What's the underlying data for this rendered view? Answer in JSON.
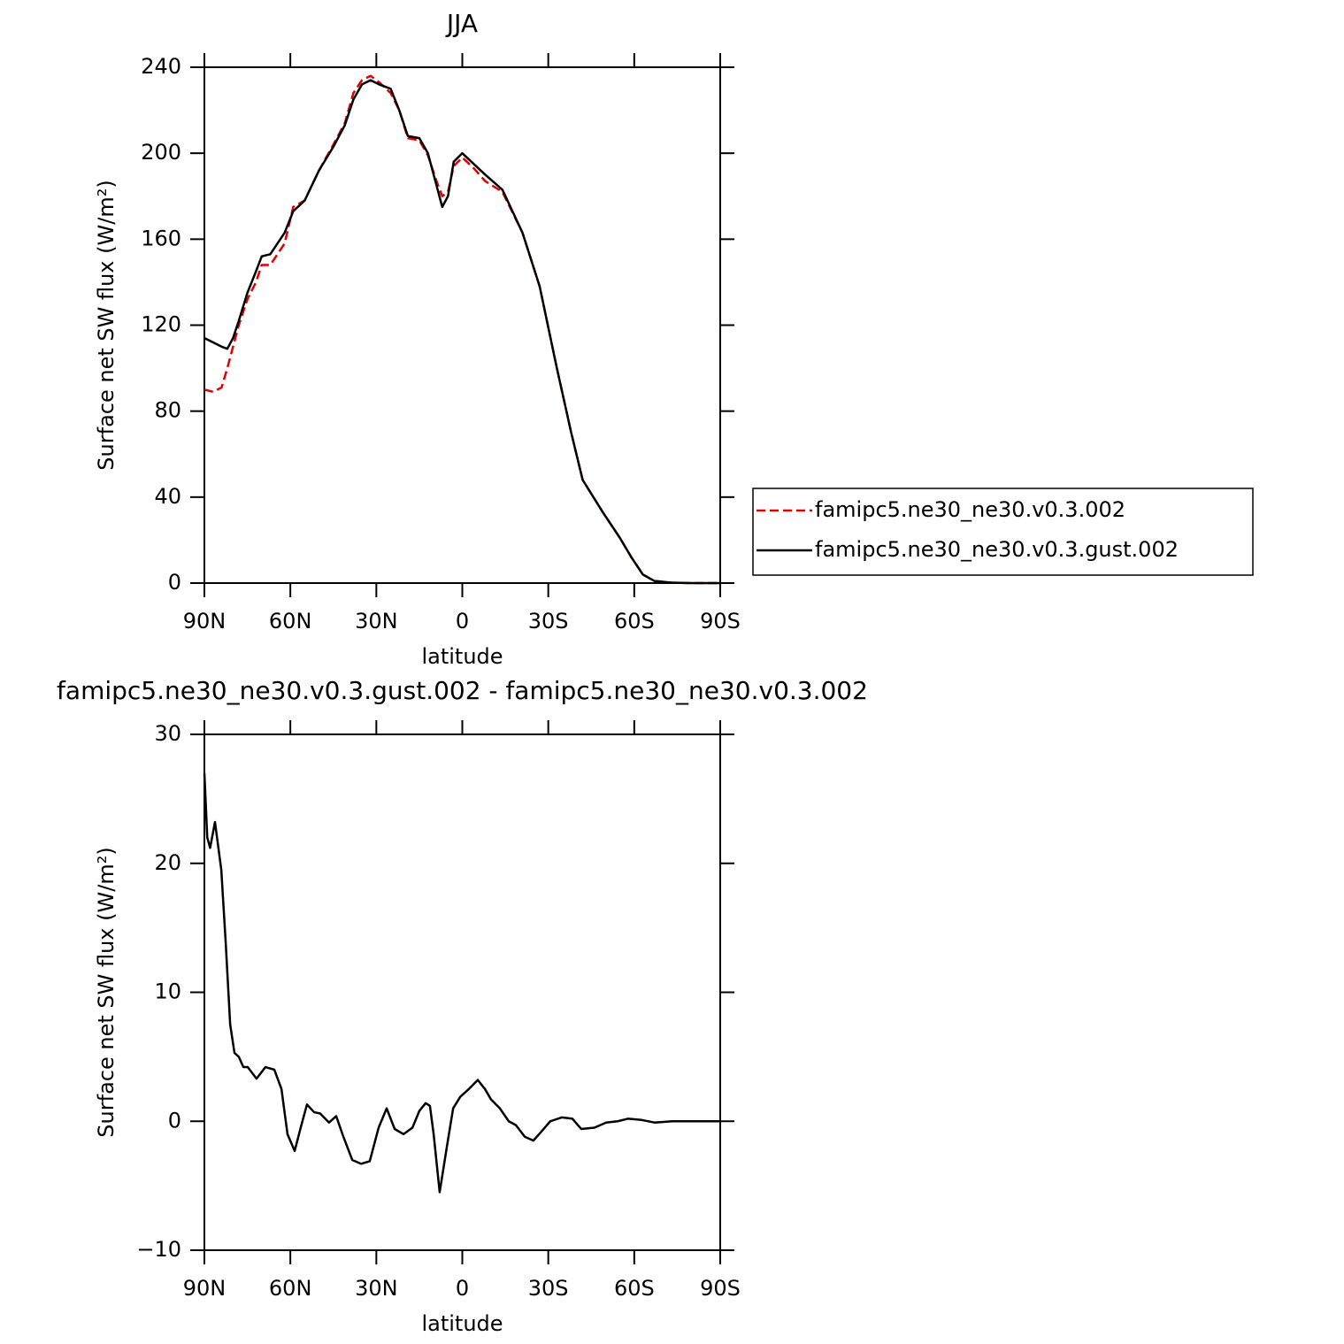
{
  "chart_data": [
    {
      "type": "line",
      "title": "JJA",
      "x_label": "latitude",
      "y_label": "Surface net SW flux (W/m²)",
      "x": [
        90,
        87,
        84,
        82,
        80,
        78,
        75,
        72,
        70,
        67,
        62,
        59,
        55,
        50,
        45,
        41,
        38,
        35,
        32,
        29,
        25,
        22,
        19,
        15,
        12,
        9,
        7,
        5,
        3,
        0,
        -4,
        -8,
        -14,
        -21,
        -27,
        -33,
        -38,
        -42,
        -49,
        -55,
        -59,
        -63,
        -67,
        -73,
        -80,
        -90
      ],
      "series": [
        {
          "name": "famipc5.ne30_ne30.v0.3.002",
          "color": "#e00000",
          "line_style": "dashed",
          "values": [
            90,
            89,
            91,
            100,
            110,
            120,
            132,
            140,
            148,
            148,
            158,
            175,
            178,
            192,
            204,
            214,
            228,
            234,
            236,
            233,
            228,
            220,
            207,
            206,
            199,
            187,
            180,
            182,
            194,
            198,
            193,
            187,
            182,
            163,
            138,
            100,
            70,
            48,
            33,
            21,
            12,
            4,
            1,
            0.2,
            0,
            0
          ]
        },
        {
          "name": "famipc5.ne30_ne30.v0.3.gust.002",
          "color": "#000000",
          "line_style": "solid",
          "values": [
            114,
            112,
            110,
            109,
            114,
            122,
            135,
            145,
            152,
            153,
            163,
            173,
            178,
            192,
            203,
            213,
            225,
            232,
            234,
            232,
            230,
            220,
            208,
            207,
            200,
            185,
            175,
            180,
            196,
            200,
            195,
            190,
            183,
            163,
            138,
            100,
            70,
            48,
            33,
            21,
            12,
            4,
            1,
            0.2,
            0,
            0
          ]
        }
      ],
      "xlim": [
        90,
        -90
      ],
      "xticks": [
        {
          "value": 90,
          "label": "90N"
        },
        {
          "value": 60,
          "label": "60N"
        },
        {
          "value": 30,
          "label": "30N"
        },
        0,
        {
          "value": -30,
          "label": "30S"
        },
        {
          "value": -60,
          "label": "60S"
        },
        {
          "value": -90,
          "label": "90S"
        }
      ],
      "ylim": [
        0,
        240
      ],
      "yticks": [
        0,
        40,
        80,
        120,
        160,
        200,
        240
      ],
      "legend": "right"
    },
    {
      "type": "line",
      "title": "famipc5.ne30_ne30.v0.3.gust.002 - famipc5.ne30_ne30.v0.3.002",
      "x_label": "latitude",
      "y_label": "Surface net SW flux (W/m²)",
      "x": [
        90,
        89,
        88,
        86.3,
        84.1,
        82.6,
        81,
        79.5,
        78,
        76.4,
        74.9,
        71.8,
        68.7,
        65.6,
        63.1,
        61,
        58.5,
        56.4,
        54.2,
        51.7,
        49.6,
        46.5,
        44,
        41.5,
        38.4,
        35.3,
        32.3,
        29.2,
        26.4,
        23.6,
        20.5,
        17.4,
        15,
        12.8,
        11.3,
        10,
        7.9,
        5.4,
        3.2,
        0.7,
        -2.3,
        -5.4,
        -7.9,
        -10,
        -13.1,
        -16.2,
        -18.7,
        -21.8,
        -24.8,
        -27.6,
        -30.7,
        -34.7,
        -38.4,
        -41.5,
        -46.1,
        -50.2,
        -54.2,
        -57.9,
        -62.6,
        -67.1,
        -73.3,
        -90
      ],
      "color": "#000000",
      "values": [
        27,
        22,
        21.2,
        23.2,
        19.5,
        14,
        7.5,
        5.3,
        5,
        4.2,
        4.2,
        3.3,
        4.2,
        4,
        2.5,
        -1,
        -2.3,
        -0.5,
        1.3,
        0.7,
        0.6,
        -0.1,
        0.4,
        -1.2,
        -3,
        -3.3,
        -3.1,
        -0.5,
        1,
        -0.6,
        -1,
        -0.5,
        0.8,
        1.4,
        1.2,
        -1,
        -5.5,
        -2,
        1,
        1.9,
        2.5,
        3.2,
        2.5,
        1.7,
        1,
        0,
        -0.3,
        -1.2,
        -1.5,
        -0.8,
        0,
        0.3,
        0.2,
        -0.6,
        -0.5,
        -0.1,
        0,
        0.2,
        0.1,
        -0.1,
        0,
        0
      ],
      "xlim": [
        90,
        -90
      ],
      "xticks": [
        {
          "value": 90,
          "label": "90N"
        },
        {
          "value": 60,
          "label": "60N"
        },
        {
          "value": 30,
          "label": "30N"
        },
        0,
        {
          "value": -30,
          "label": "30S"
        },
        {
          "value": -60,
          "label": "60S"
        },
        {
          "value": -90,
          "label": "90S"
        }
      ],
      "ylim": [
        -10,
        30
      ],
      "yticks": [
        {
          "value": -10,
          "label": "−10"
        },
        0,
        10,
        20,
        30
      ]
    }
  ]
}
